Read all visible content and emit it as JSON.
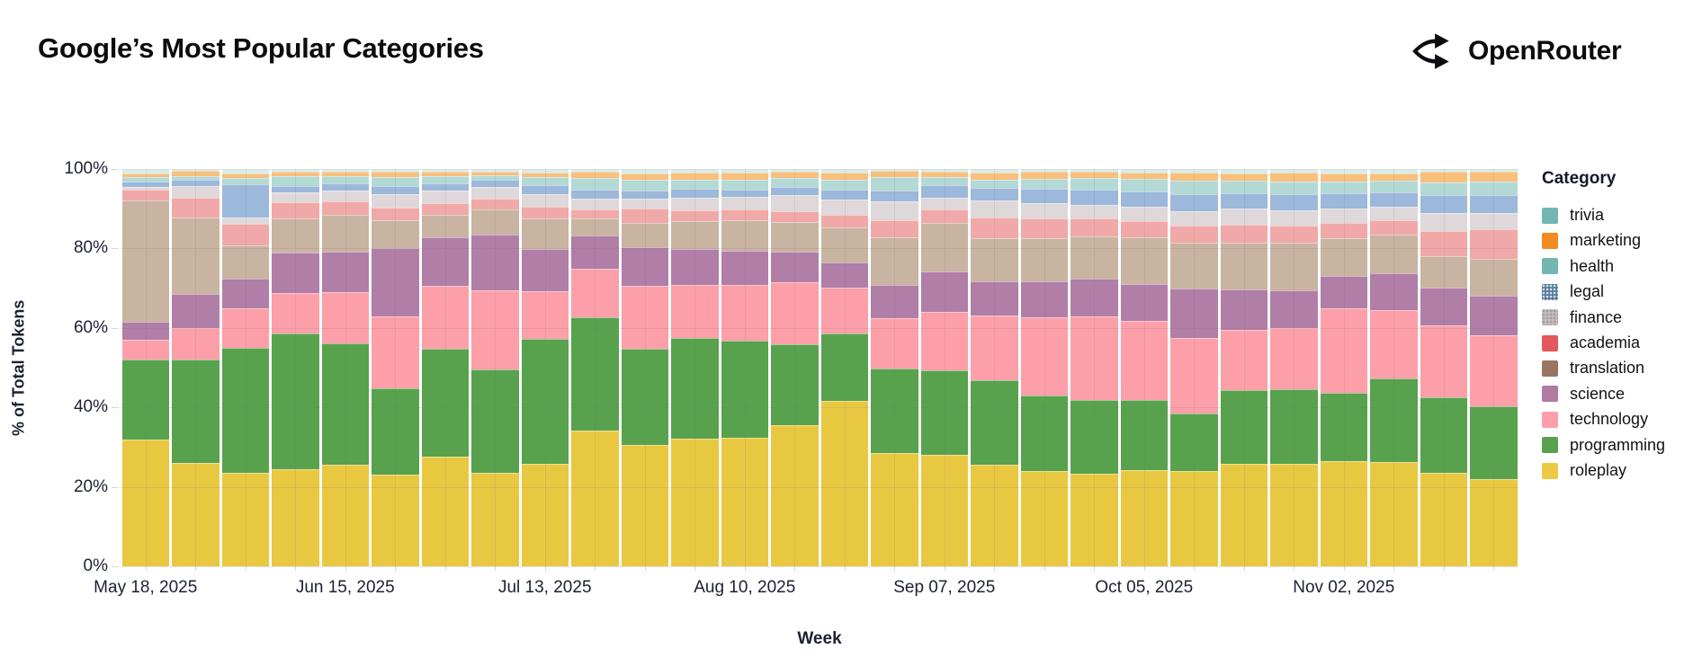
{
  "header": {
    "title": "Google’s Most Popular Categories",
    "logo_text": "OpenRouter"
  },
  "chart_data": {
    "type": "bar",
    "stacked": true,
    "title": "Google’s Most Popular Categories",
    "xlabel": "Week",
    "ylabel": "% of Total Tokens",
    "ylim": [
      0,
      100
    ],
    "grid": true,
    "legend_position": "right",
    "legend_title": "Category",
    "legend_order_top_to_bottom": [
      "trivia",
      "marketing",
      "health",
      "legal",
      "finance",
      "academia",
      "translation",
      "science",
      "technology",
      "programming",
      "roleplay"
    ],
    "y_tick_labels": [
      "0%",
      "20%",
      "40%",
      "60%",
      "80%",
      "100%"
    ],
    "x_tick_labels": [
      "May 18, 2025",
      "Jun 15, 2025",
      "Jul 13, 2025",
      "Aug 10, 2025",
      "Sep 07, 2025",
      "Oct 05, 2025",
      "Nov 02, 2025"
    ],
    "x_tick_bar_indices": [
      0,
      4,
      8,
      12,
      16,
      20,
      24
    ],
    "weeks": [
      "May 18, 2025",
      "May 25, 2025",
      "Jun 01, 2025",
      "Jun 08, 2025",
      "Jun 15, 2025",
      "Jun 22, 2025",
      "Jun 29, 2025",
      "Jul 06, 2025",
      "Jul 13, 2025",
      "Jul 20, 2025",
      "Jul 27, 2025",
      "Aug 03, 2025",
      "Aug 10, 2025",
      "Aug 17, 2025",
      "Aug 24, 2025",
      "Aug 31, 2025",
      "Sep 07, 2025",
      "Sep 14, 2025",
      "Sep 21, 2025",
      "Sep 28, 2025",
      "Oct 05, 2025",
      "Oct 12, 2025",
      "Oct 19, 2025",
      "Oct 26, 2025",
      "Nov 02, 2025",
      "Nov 09, 2025",
      "Nov 16, 2025",
      "Nov 23, 2025"
    ],
    "series": [
      {
        "name": "roleplay",
        "bar_color": "#e9c841",
        "legend_color": "#ecc944",
        "pattern": false,
        "values": [
          32,
          26,
          23.5,
          24.5,
          25.5,
          23,
          27.5,
          23.5,
          25.8,
          34,
          30.5,
          32,
          32.5,
          35.5,
          41.5,
          28.5,
          28,
          25.5,
          24,
          23.4,
          24.3,
          23.9,
          25.8,
          25.9,
          26.5,
          26.3,
          23.5,
          22
        ]
      },
      {
        "name": "programming",
        "bar_color": "#58a24e",
        "legend_color": "#59a14f",
        "pattern": false,
        "values": [
          20,
          26,
          31.5,
          34,
          30.7,
          21.8,
          27.2,
          26.3,
          31.5,
          28.5,
          24.2,
          25.3,
          24.5,
          20.4,
          17,
          21.3,
          21.3,
          21.3,
          19,
          18.5,
          17.6,
          14.4,
          18.5,
          18.7,
          17.1,
          20.9,
          19,
          18.2
        ]
      },
      {
        "name": "technology",
        "bar_color": "#fc9fa9",
        "legend_color": "#ff9ea8",
        "pattern": false,
        "values": [
          5,
          8,
          10,
          10.4,
          12.7,
          18.1,
          15.9,
          19.8,
          12,
          12.1,
          15.9,
          13.4,
          14,
          15.6,
          11.4,
          12.7,
          14.5,
          16.3,
          19.7,
          21,
          19.9,
          19,
          15.2,
          15.4,
          21.2,
          17.3,
          18,
          18
        ]
      },
      {
        "name": "science",
        "bar_color": "#b07ea7",
        "legend_color": "#b07aa1",
        "pattern": false,
        "values": [
          4.5,
          8.5,
          7.3,
          10.1,
          10.4,
          17.1,
          12.2,
          14.1,
          10.5,
          8.4,
          9.8,
          9,
          8.6,
          7.7,
          6.3,
          8.3,
          10.2,
          8.6,
          9,
          9.5,
          9.3,
          12.3,
          10.2,
          9.5,
          8.1,
          9.3,
          9.5,
          10
        ]
      },
      {
        "name": "translation",
        "bar_color": "#c9b3a1",
        "legend_color": "#9c7560",
        "pattern": false,
        "values": [
          30.5,
          19.2,
          8.4,
          8.5,
          9.2,
          7,
          5.7,
          6.3,
          7.7,
          4.3,
          6.1,
          7.1,
          7.6,
          7.5,
          8.9,
          12,
          12.2,
          11,
          11,
          10.7,
          11.8,
          11.6,
          11.8,
          12,
          9.6,
          9.6,
          8,
          9.2
        ]
      },
      {
        "name": "academia",
        "bar_color": "#f0a9a8",
        "legend_color": "#e4575a",
        "pattern": false,
        "values": [
          2.8,
          5,
          5.5,
          4.1,
          3.3,
          3.3,
          2.9,
          2.8,
          3.1,
          2.3,
          3.5,
          2.7,
          2.8,
          2.7,
          3.1,
          4.4,
          3.4,
          5.1,
          4.8,
          4.4,
          3.9,
          4.2,
          4.5,
          4.3,
          3.9,
          3.7,
          6.4,
          7.5
        ]
      },
      {
        "name": "finance",
        "bar_color": "#dfd8da",
        "legend_color": "#cabcb1",
        "pattern": true,
        "values": [
          0.6,
          3.1,
          1.5,
          2.5,
          2.8,
          3.3,
          3.2,
          2.9,
          3.1,
          2.6,
          2.6,
          3.2,
          3.3,
          4,
          3.9,
          4.7,
          3.1,
          4.4,
          4,
          3.5,
          3.8,
          3.7,
          4,
          3.9,
          3.6,
          3.5,
          4.4,
          4
        ]
      },
      {
        "name": "legal",
        "bar_color": "#9cb8da",
        "legend_color": "#57789b",
        "pattern": true,
        "values": [
          1.5,
          1.5,
          8.5,
          1.7,
          1.7,
          2.1,
          1.7,
          1.8,
          2.3,
          2.4,
          2,
          2.2,
          1.8,
          2.1,
          2.4,
          2.7,
          3.1,
          3,
          3.5,
          3.9,
          3.7,
          4.2,
          4,
          3.9,
          3.7,
          3.6,
          4.5,
          4.5
        ]
      },
      {
        "name": "health",
        "bar_color": "#b3d9d5",
        "legend_color": "#74b6b1",
        "pattern": false,
        "values": [
          1,
          0.9,
          1.6,
          2.3,
          1.9,
          2.3,
          1.9,
          1.3,
          1.9,
          2.9,
          2.8,
          2.3,
          2.3,
          2.3,
          2.6,
          3.4,
          2,
          2.2,
          2.6,
          2.9,
          3.2,
          3.3,
          3,
          3.2,
          3,
          2.8,
          3.3,
          3.5
        ]
      },
      {
        "name": "marketing",
        "bar_color": "#f8bf7d",
        "legend_color": "#f18c21",
        "pattern": false,
        "values": [
          1.1,
          1.3,
          1.2,
          1.2,
          1.1,
          1.3,
          1.1,
          0.9,
          1.3,
          1.6,
          1.6,
          1.9,
          2,
          1.6,
          1.8,
          1.5,
          1.4,
          1.8,
          1.7,
          1.6,
          1.7,
          2.2,
          2,
          2.3,
          2.2,
          2,
          2.7,
          2.4
        ]
      },
      {
        "name": "trivia",
        "bar_color": "#d7ecea",
        "legend_color": "#74b6b1",
        "pattern": true,
        "values": [
          1,
          0.5,
          1,
          0.7,
          0.7,
          0.7,
          0.7,
          0.6,
          0.8,
          0.6,
          1,
          0.8,
          0.8,
          0.6,
          0.8,
          0.5,
          0.6,
          0.8,
          0.7,
          0.6,
          0.8,
          0.8,
          1,
          0.9,
          1,
          1,
          0.6,
          0.7
        ]
      }
    ]
  }
}
